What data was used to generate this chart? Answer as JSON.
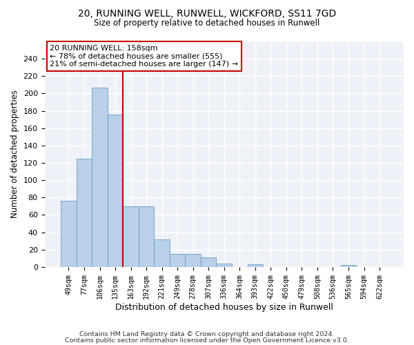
{
  "title": "20, RUNNING WELL, RUNWELL, WICKFORD, SS11 7GD",
  "subtitle": "Size of property relative to detached houses in Runwell",
  "xlabel": "Distribution of detached houses by size in Runwell",
  "ylabel": "Number of detached properties",
  "bar_color": "#b8d0e8",
  "bar_edge_color": "#6a9ec0",
  "background_color": "#eef2f8",
  "grid_color": "#ffffff",
  "categories": [
    "49sqm",
    "77sqm",
    "106sqm",
    "135sqm",
    "163sqm",
    "192sqm",
    "221sqm",
    "249sqm",
    "278sqm",
    "307sqm",
    "336sqm",
    "364sqm",
    "393sqm",
    "422sqm",
    "450sqm",
    "479sqm",
    "508sqm",
    "536sqm",
    "565sqm",
    "594sqm",
    "622sqm"
  ],
  "values": [
    76,
    125,
    207,
    176,
    70,
    70,
    32,
    15,
    15,
    11,
    4,
    0,
    3,
    0,
    0,
    0,
    0,
    0,
    2,
    0,
    0
  ],
  "redline_x": 3.5,
  "annotation_text": "20 RUNNING WELL: 158sqm\n← 78% of detached houses are smaller (555)\n21% of semi-detached houses are larger (147) →",
  "ylim": [
    0,
    260
  ],
  "yticks": [
    0,
    20,
    40,
    60,
    80,
    100,
    120,
    140,
    160,
    180,
    200,
    220,
    240
  ],
  "footer_line1": "Contains HM Land Registry data © Crown copyright and database right 2024.",
  "footer_line2": "Contains public sector information licensed under the Open Government Licence v3.0."
}
